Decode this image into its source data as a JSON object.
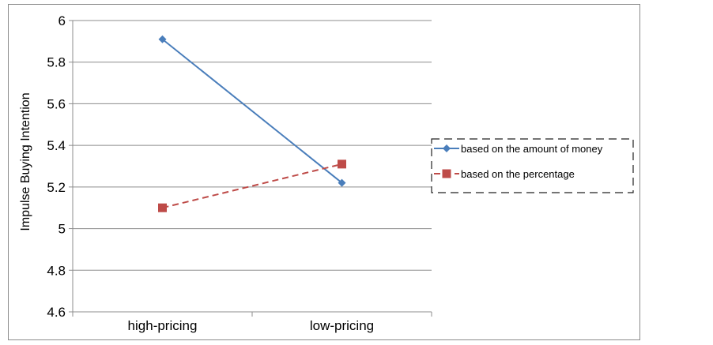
{
  "chart_data": {
    "type": "line",
    "categories": [
      "high-pricing",
      "low-pricing"
    ],
    "series": [
      {
        "name": "based on the amount of money",
        "values": [
          5.91,
          5.22
        ],
        "color": "#4a7ebb",
        "marker": "diamond",
        "line_style": "solid"
      },
      {
        "name": "based on the percentage",
        "values": [
          5.1,
          5.31
        ],
        "color": "#be4b48",
        "marker": "square",
        "line_style": "dashed"
      }
    ],
    "title": "",
    "xlabel": "",
    "ylabel": "Impulse Buying Intention",
    "ylim": [
      4.6,
      6
    ],
    "yticks": [
      "4.6",
      "4.8",
      "5",
      "5.2",
      "5.4",
      "5.6",
      "5.8",
      "6"
    ],
    "grid": "horizontal",
    "legend_position": "right"
  }
}
